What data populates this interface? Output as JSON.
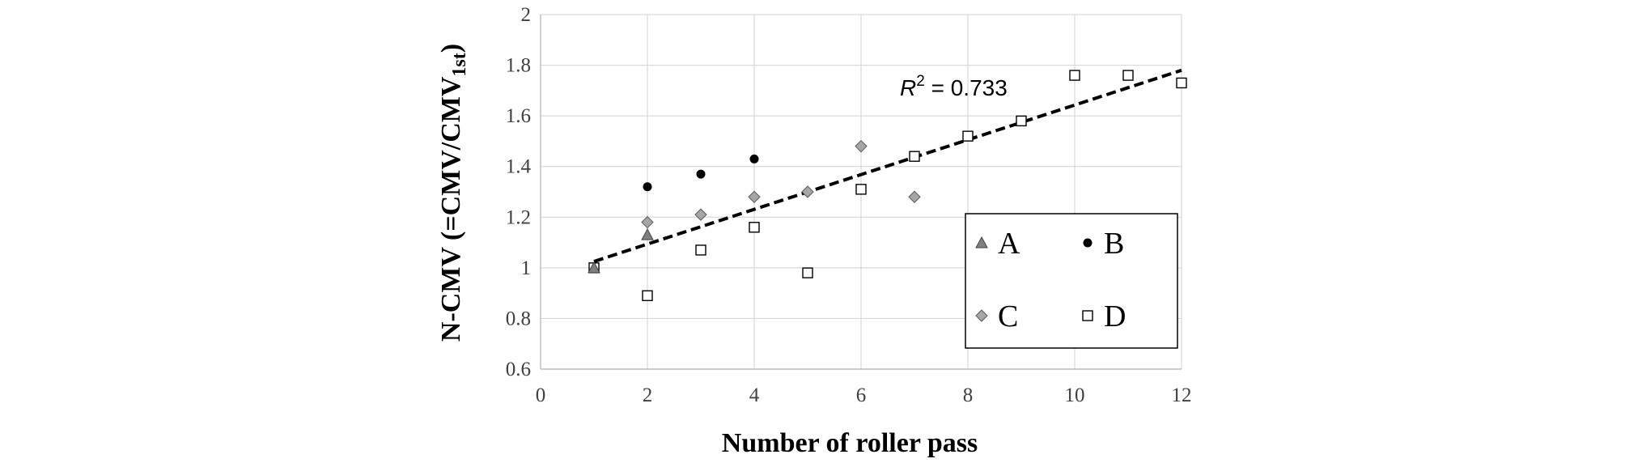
{
  "chart_data": {
    "type": "scatter",
    "xlabel": "Number of roller pass",
    "ylabel": "N-CMV (=CMV/CMV",
    "ylabel_subscript": "1st",
    "ylabel_close": ")",
    "xlim": [
      0,
      12
    ],
    "ylim": [
      0.6,
      2
    ],
    "x_ticks": [
      "0",
      "2",
      "4",
      "6",
      "8",
      "10",
      "12"
    ],
    "y_ticks": [
      "0.6",
      "0.8",
      "1",
      "1.2",
      "1.4",
      "1.6",
      "1.8",
      "2"
    ],
    "grid": true,
    "legend_placement": "bottom-right",
    "series": [
      {
        "name": "A",
        "marker": "triangle",
        "color": "#7f7f7f",
        "x": [
          1,
          2
        ],
        "y": [
          1.0,
          1.13
        ]
      },
      {
        "name": "B",
        "marker": "circle",
        "color": "#000000",
        "x": [
          2,
          3,
          4
        ],
        "y": [
          1.32,
          1.37,
          1.43
        ]
      },
      {
        "name": "C",
        "marker": "diamond",
        "color": "#a6a6a6",
        "x": [
          2,
          3,
          4,
          5,
          6,
          7
        ],
        "y": [
          1.18,
          1.21,
          1.28,
          1.3,
          1.48,
          1.28
        ]
      },
      {
        "name": "D",
        "marker": "square",
        "color": "#ffffff",
        "x": [
          1,
          2,
          3,
          4,
          5,
          6,
          7,
          8,
          9,
          10,
          11,
          12
        ],
        "y": [
          1.0,
          0.89,
          1.07,
          1.16,
          0.98,
          1.31,
          1.44,
          1.52,
          1.58,
          1.76,
          1.76,
          1.73
        ]
      }
    ],
    "trendline": {
      "x": [
        1,
        12
      ],
      "y": [
        1.025,
        1.78
      ],
      "style": "dashed"
    },
    "annotation": {
      "r_label": "R",
      "r_exp": "2",
      "text": " = 0.733"
    }
  }
}
